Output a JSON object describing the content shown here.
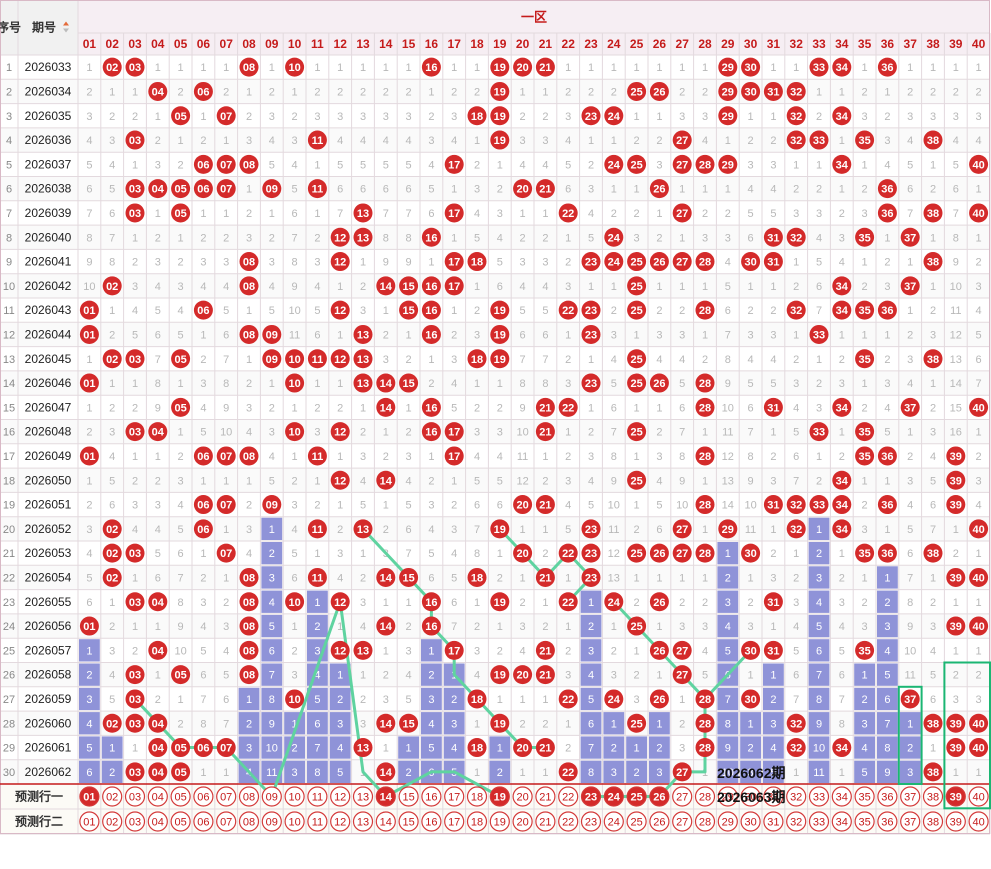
{
  "header": {
    "seq_label": "序号",
    "period_label": "期号",
    "zone_label": "一区",
    "sort_icon": "sort-arrows-icon"
  },
  "columns": [
    "01",
    "02",
    "03",
    "04",
    "05",
    "06",
    "07",
    "08",
    "09",
    "10",
    "11",
    "12",
    "13",
    "14",
    "15",
    "16",
    "17",
    "18",
    "19",
    "20",
    "21",
    "22",
    "23",
    "24",
    "25",
    "26",
    "27",
    "28",
    "29",
    "30",
    "31",
    "32",
    "33",
    "34",
    "35",
    "36",
    "37",
    "38",
    "39",
    "40"
  ],
  "colors": {
    "ball": "#d42a2a",
    "bar": "#8f93d8",
    "trend_line": "#5fd3a0",
    "highlight_box": "#1bb673",
    "pred_ring": "#d43b3b"
  },
  "draws": [
    {
      "seq": "1",
      "period": "2026033",
      "nums": [
        2,
        3,
        8,
        10,
        16,
        19,
        20,
        21,
        29,
        30,
        33,
        34,
        36
      ]
    },
    {
      "seq": "2",
      "period": "2026034",
      "nums": [
        4,
        6,
        19,
        25,
        26,
        29,
        30,
        31,
        32
      ]
    },
    {
      "seq": "3",
      "period": "2026035",
      "nums": [
        5,
        7,
        18,
        19,
        23,
        24,
        29,
        32,
        34
      ]
    },
    {
      "seq": "4",
      "period": "2026036",
      "nums": [
        3,
        11,
        19,
        27,
        32,
        33,
        35,
        38
      ]
    },
    {
      "seq": "5",
      "period": "2026037",
      "nums": [
        6,
        7,
        8,
        17,
        24,
        25,
        27,
        28,
        29,
        34,
        40
      ]
    },
    {
      "seq": "6",
      "period": "2026038",
      "nums": [
        3,
        4,
        5,
        6,
        7,
        9,
        11,
        20,
        21,
        26,
        36
      ]
    },
    {
      "seq": "7",
      "period": "2026039",
      "nums": [
        3,
        5,
        13,
        17,
        22,
        27,
        36,
        38,
        40
      ]
    },
    {
      "seq": "8",
      "period": "2026040",
      "nums": [
        12,
        13,
        16,
        24,
        31,
        32,
        35,
        37
      ]
    },
    {
      "seq": "9",
      "period": "2026041",
      "nums": [
        8,
        12,
        17,
        18,
        23,
        24,
        25,
        26,
        27,
        28,
        30,
        31,
        38
      ]
    },
    {
      "seq": "10",
      "period": "2026042",
      "nums": [
        2,
        8,
        14,
        15,
        16,
        17,
        25,
        34,
        37
      ]
    },
    {
      "seq": "11",
      "period": "2026043",
      "nums": [
        1,
        6,
        12,
        15,
        16,
        19,
        22,
        23,
        25,
        28,
        32,
        34,
        35,
        36
      ]
    },
    {
      "seq": "12",
      "period": "2026044",
      "nums": [
        1,
        8,
        9,
        13,
        16,
        19,
        23,
        33
      ]
    },
    {
      "seq": "13",
      "period": "2026045",
      "nums": [
        2,
        3,
        5,
        9,
        10,
        11,
        12,
        13,
        18,
        19,
        25,
        35,
        38
      ]
    },
    {
      "seq": "14",
      "period": "2026046",
      "nums": [
        1,
        10,
        13,
        14,
        15,
        23,
        25,
        26,
        28
      ]
    },
    {
      "seq": "15",
      "period": "2026047",
      "nums": [
        5,
        14,
        16,
        21,
        22,
        28,
        31,
        34,
        37,
        40
      ]
    },
    {
      "seq": "16",
      "period": "2026048",
      "nums": [
        3,
        4,
        10,
        12,
        16,
        17,
        21,
        25,
        33,
        35
      ]
    },
    {
      "seq": "17",
      "period": "2026049",
      "nums": [
        1,
        6,
        7,
        8,
        11,
        17,
        28,
        35,
        36,
        39
      ]
    },
    {
      "seq": "18",
      "period": "2026050",
      "nums": [
        12,
        14,
        25,
        34,
        39
      ]
    },
    {
      "seq": "19",
      "period": "2026051",
      "nums": [
        6,
        7,
        9,
        20,
        21,
        28,
        31,
        32,
        33,
        34,
        36,
        39
      ]
    },
    {
      "seq": "20",
      "period": "2026052",
      "nums": [
        2,
        6,
        11,
        13,
        19,
        23,
        27,
        29,
        32,
        34,
        40
      ]
    },
    {
      "seq": "21",
      "period": "2026053",
      "nums": [
        2,
        3,
        7,
        20,
        22,
        23,
        25,
        26,
        27,
        28,
        30,
        35,
        36,
        38
      ]
    },
    {
      "seq": "22",
      "period": "2026054",
      "nums": [
        2,
        8,
        11,
        14,
        15,
        18,
        21,
        23,
        39,
        40
      ]
    },
    {
      "seq": "23",
      "period": "2026055",
      "nums": [
        3,
        4,
        8,
        10,
        12,
        16,
        19,
        22,
        24,
        26,
        31
      ]
    },
    {
      "seq": "24",
      "period": "2026056",
      "nums": [
        1,
        8,
        14,
        16,
        25,
        39,
        40
      ]
    },
    {
      "seq": "25",
      "period": "2026057",
      "nums": [
        4,
        8,
        12,
        13,
        17,
        21,
        26,
        27,
        30,
        31,
        35
      ]
    },
    {
      "seq": "26",
      "period": "2026058",
      "nums": [
        3,
        5,
        8,
        19,
        20,
        21,
        27
      ]
    },
    {
      "seq": "27",
      "period": "2026059",
      "nums": [
        3,
        10,
        18,
        22,
        24,
        26,
        28,
        30,
        37
      ]
    },
    {
      "seq": "28",
      "period": "2026060",
      "nums": [
        2,
        3,
        4,
        14,
        15,
        19,
        25,
        28,
        32,
        38,
        39,
        40
      ]
    },
    {
      "seq": "29",
      "period": "2026061",
      "nums": [
        4,
        5,
        6,
        7,
        13,
        18,
        20,
        21,
        28,
        32,
        34,
        39,
        40
      ]
    },
    {
      "seq": "30",
      "period": "2026062",
      "nums": [
        3,
        4,
        5,
        14,
        22,
        27,
        38
      ]
    }
  ],
  "prediction": {
    "row1_label": "预测行一",
    "row2_label": "预测行二",
    "row1_picks": [
      1,
      14,
      19,
      23,
      24,
      25,
      26,
      39
    ]
  },
  "annotations": {
    "line1": "2026062期",
    "line2": "2026063期"
  }
}
